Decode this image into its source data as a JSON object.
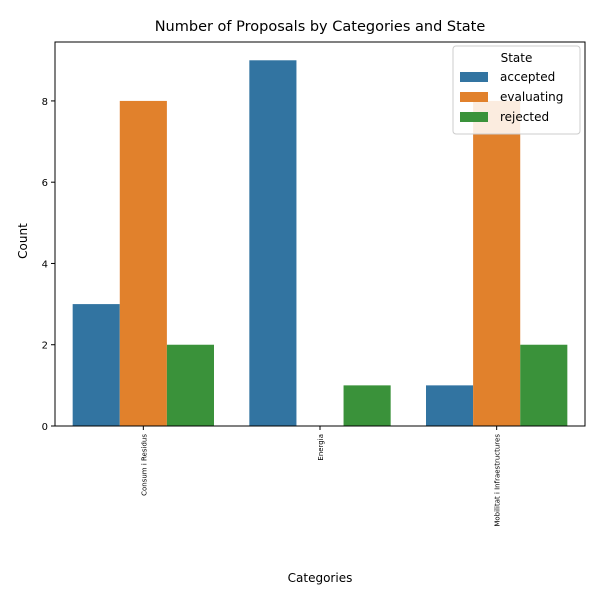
{
  "chart_data": {
    "type": "bar",
    "title": "Number of Proposals by Categories and State",
    "xlabel": "Categories",
    "ylabel": "Count",
    "categories": [
      "Consum i Residus",
      "Energia",
      "Mobilitat i Infraestructures"
    ],
    "series": [
      {
        "name": "accepted",
        "values": [
          3,
          9,
          1
        ],
        "color": "#3274a1"
      },
      {
        "name": "evaluating",
        "values": [
          8,
          0,
          8
        ],
        "color": "#e1812c"
      },
      {
        "name": "rejected",
        "values": [
          2,
          1,
          2
        ],
        "color": "#3a923a"
      }
    ],
    "ylim": [
      0,
      9.45
    ],
    "yticks": [
      0,
      2,
      4,
      6,
      8
    ],
    "grid": false,
    "legend": {
      "title": "State",
      "placement": "top-right"
    }
  }
}
